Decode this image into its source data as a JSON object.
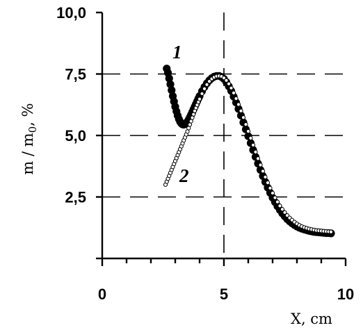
{
  "chart_data": {
    "type": "scatter",
    "xlabel": "X, cm",
    "ylabel": "m / m",
    "ylabel_sub": "0",
    "ylabel_suffix": ", %",
    "xlim": [
      0,
      10
    ],
    "ylim": [
      0,
      10
    ],
    "x_ticks": [
      "0",
      "5",
      "10"
    ],
    "y_ticks": [
      "2,5",
      "5,0",
      "7,5",
      "10,0"
    ],
    "grid": "dashed major gridlines",
    "series": [
      {
        "name": "1",
        "marker": "filled-circle",
        "color": "#000000",
        "x": [
          2.65,
          2.7,
          2.75,
          2.8,
          2.85,
          2.9,
          2.95,
          3.0,
          3.05,
          3.1,
          3.15,
          3.2,
          3.25,
          3.3,
          3.35,
          3.4,
          3.45,
          3.5,
          3.55,
          3.6,
          3.65,
          3.7,
          3.75,
          3.8,
          3.85,
          3.9,
          3.95,
          4.0,
          4.1,
          4.2,
          4.3,
          4.4,
          4.5,
          4.6,
          4.7,
          4.8,
          4.9,
          5.0,
          5.1,
          5.2,
          5.3,
          5.4,
          5.5,
          5.6,
          5.7,
          5.8,
          5.9,
          6.0,
          6.1,
          6.2,
          6.3,
          6.4,
          6.5,
          6.6,
          6.7,
          6.8,
          6.9,
          7.0,
          7.1,
          7.2,
          7.3,
          7.4,
          7.5,
          7.6,
          7.7,
          7.8,
          7.9,
          8.0,
          8.1,
          8.2,
          8.3,
          8.4,
          8.5,
          8.6,
          8.7,
          8.8,
          8.9,
          9.0,
          9.1,
          9.2,
          9.3,
          9.4
        ],
        "y": [
          7.72,
          7.55,
          7.32,
          7.08,
          6.84,
          6.6,
          6.38,
          6.17,
          5.98,
          5.81,
          5.67,
          5.56,
          5.49,
          5.45,
          5.44,
          5.46,
          5.5,
          5.56,
          5.64,
          5.74,
          5.84,
          5.95,
          6.06,
          6.17,
          6.28,
          6.39,
          6.5,
          6.6,
          6.8,
          6.97,
          7.12,
          7.24,
          7.33,
          7.39,
          7.42,
          7.42,
          7.38,
          7.3,
          7.17,
          7.0,
          6.81,
          6.58,
          6.34,
          6.08,
          5.81,
          5.53,
          5.25,
          4.97,
          4.69,
          4.41,
          4.13,
          3.86,
          3.6,
          3.35,
          3.11,
          2.88,
          2.67,
          2.47,
          2.29,
          2.12,
          1.97,
          1.83,
          1.71,
          1.6,
          1.51,
          1.43,
          1.36,
          1.3,
          1.25,
          1.21,
          1.18,
          1.15,
          1.12,
          1.1,
          1.08,
          1.07,
          1.06,
          1.05,
          1.04,
          1.03,
          1.03,
          1.02
        ]
      },
      {
        "name": "2",
        "marker": "open-circle",
        "color": "#000000",
        "x": [
          2.6,
          2.65,
          2.7,
          2.75,
          2.8,
          2.85,
          2.9,
          2.95,
          3.0,
          3.05,
          3.1,
          3.15,
          3.2,
          3.25,
          3.3,
          3.35,
          3.4,
          3.45,
          3.5,
          3.55,
          3.6,
          3.65,
          3.7,
          3.75,
          3.8,
          3.85,
          3.9,
          3.95,
          4.0,
          4.1,
          4.2,
          4.3,
          4.4,
          4.5,
          4.6,
          4.7,
          4.8,
          4.9,
          5.0,
          5.1,
          5.2,
          5.3,
          5.4,
          5.5,
          5.6,
          5.7,
          5.8,
          5.9,
          6.0,
          6.1,
          6.2,
          6.3,
          6.4,
          6.5,
          6.6,
          6.7,
          6.8,
          6.9,
          7.0,
          7.1,
          7.2,
          7.3,
          7.4,
          7.5,
          7.6,
          7.7,
          7.8,
          7.9,
          8.0,
          8.1,
          8.2,
          8.3,
          8.4,
          8.5,
          8.6,
          8.7,
          8.8,
          8.9,
          9.0,
          9.1,
          9.2,
          9.3,
          9.4
        ],
        "y": [
          3.0,
          3.12,
          3.24,
          3.36,
          3.48,
          3.6,
          3.72,
          3.84,
          3.96,
          4.08,
          4.2,
          4.32,
          4.44,
          4.56,
          4.68,
          4.8,
          4.92,
          5.04,
          5.16,
          5.3,
          5.44,
          5.58,
          5.72,
          5.86,
          6.0,
          6.12,
          6.24,
          6.36,
          6.48,
          6.7,
          6.9,
          7.07,
          7.2,
          7.3,
          7.37,
          7.41,
          7.42,
          7.4,
          7.34,
          7.24,
          7.1,
          6.93,
          6.73,
          6.5,
          6.26,
          6.0,
          5.73,
          5.45,
          5.17,
          4.89,
          4.61,
          4.33,
          4.06,
          3.8,
          3.55,
          3.31,
          3.08,
          2.86,
          2.66,
          2.47,
          2.3,
          2.14,
          2.0,
          1.87,
          1.75,
          1.65,
          1.56,
          1.48,
          1.41,
          1.35,
          1.3,
          1.26,
          1.23,
          1.2,
          1.18,
          1.16,
          1.14,
          1.13,
          1.12,
          1.11,
          1.1,
          1.09,
          1.08
        ]
      }
    ]
  }
}
